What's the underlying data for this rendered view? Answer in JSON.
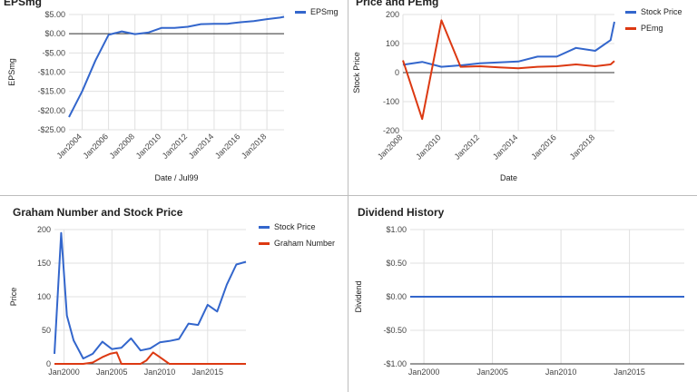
{
  "chart_data": [
    {
      "id": "eps",
      "type": "line",
      "title": "EPSmg",
      "xlabel": "Date / Jul99",
      "ylabel": "EPSmg",
      "x_axis": "date",
      "xlim": [
        2003.0,
        2019.3
      ],
      "ylim": [
        -25,
        5
      ],
      "x_tick_labels": [
        "Jan2004",
        "Jan2006",
        "Jan2008",
        "Jan2010",
        "Jan2012",
        "Jan2014",
        "Jan2016",
        "Jan2018"
      ],
      "x_ticks": [
        2004,
        2006,
        2008,
        2010,
        2012,
        2014,
        2016,
        2018
      ],
      "y_tick_labels": [
        "$5.00",
        "$0.00",
        "-$5.00",
        "-$10.00",
        "-$15.00",
        "-$20.00",
        "-$25.00"
      ],
      "y_ticks": [
        5,
        0,
        -5,
        -10,
        -15,
        -20,
        -25
      ],
      "zero_line": 0,
      "grid": true,
      "legend_position": "top-right",
      "series": [
        {
          "name": "EPSmg",
          "color": "#3366cc",
          "x": [
            2003.0,
            2004.0,
            2005.0,
            2006.0,
            2007.0,
            2008.0,
            2009.0,
            2010.0,
            2011.0,
            2012.0,
            2013.0,
            2014.0,
            2015.0,
            2016.0,
            2017.0,
            2018.0,
            2019.0,
            2019.3
          ],
          "y": [
            -21.7,
            -15.0,
            -7.0,
            -0.3,
            0.6,
            -0.1,
            0.3,
            1.5,
            1.5,
            1.8,
            2.5,
            2.6,
            2.6,
            3.0,
            3.3,
            3.8,
            4.2,
            4.4
          ]
        }
      ]
    },
    {
      "id": "price_pe",
      "type": "line",
      "title": "Price and PEmg",
      "xlabel": "Date",
      "ylabel": "Stock Price",
      "x_axis": "date",
      "xlim": [
        2008.0,
        2019.0
      ],
      "ylim": [
        -200,
        200
      ],
      "x_tick_labels": [
        "Jan2008",
        "Jan2010",
        "Jan2012",
        "Jan2014",
        "Jan2016",
        "Jan2018"
      ],
      "x_ticks": [
        2008,
        2010,
        2012,
        2014,
        2016,
        2018
      ],
      "y_tick_labels": [
        "200",
        "100",
        "0",
        "-100",
        "-200"
      ],
      "y_ticks": [
        200,
        100,
        0,
        -100,
        -200
      ],
      "zero_line": 0,
      "grid": true,
      "legend_position": "top-right",
      "series": [
        {
          "name": "Stock Price",
          "color": "#3366cc",
          "x": [
            2008.0,
            2009.0,
            2010.0,
            2011.0,
            2012.0,
            2013.0,
            2014.0,
            2015.0,
            2016.0,
            2017.0,
            2018.0,
            2018.8,
            2019.0
          ],
          "y": [
            27,
            37,
            20,
            25,
            32,
            35,
            38,
            55,
            55,
            85,
            75,
            112,
            175
          ]
        },
        {
          "name": "PEmg",
          "color": "#dc3912",
          "x": [
            2008.0,
            2009.0,
            2010.0,
            2011.0,
            2012.0,
            2013.0,
            2014.0,
            2015.0,
            2016.0,
            2017.0,
            2018.0,
            2018.8,
            2019.0
          ],
          "y": [
            42,
            -160,
            180,
            20,
            22,
            18,
            15,
            20,
            22,
            28,
            22,
            28,
            40
          ]
        }
      ]
    },
    {
      "id": "graham",
      "type": "line",
      "title": "Graham Number and Stock Price",
      "xlabel": "",
      "ylabel": "Price",
      "x_axis": "date",
      "xlim": [
        1999.0,
        2019.0
      ],
      "ylim": [
        0,
        200
      ],
      "x_tick_labels": [
        "Jan2000",
        "Jan2005",
        "Jan2010",
        "Jan2015"
      ],
      "x_ticks": [
        2000,
        2005,
        2010,
        2015
      ],
      "y_tick_labels": [
        "200",
        "150",
        "100",
        "50",
        "0"
      ],
      "y_ticks": [
        200,
        150,
        100,
        50,
        0
      ],
      "grid": true,
      "legend_position": "top-right",
      "series": [
        {
          "name": "Stock Price",
          "color": "#3366cc",
          "x": [
            1999.0,
            1999.7,
            2000.3,
            2001.0,
            2002.0,
            2003.0,
            2004.0,
            2005.0,
            2006.0,
            2007.0,
            2008.0,
            2009.0,
            2010.0,
            2011.0,
            2012.0,
            2013.0,
            2014.0,
            2015.0,
            2016.0,
            2017.0,
            2018.0,
            2019.0
          ],
          "y": [
            15,
            195,
            72,
            35,
            8,
            15,
            33,
            22,
            24,
            38,
            20,
            23,
            32,
            34,
            37,
            60,
            58,
            88,
            78,
            118,
            148,
            152
          ]
        },
        {
          "name": "Graham Number",
          "color": "#dc3912",
          "x": [
            1999.0,
            1999.7,
            2000.3,
            2001.0,
            2002.0,
            2003.0,
            2004.0,
            2004.8,
            2005.5,
            2006.0,
            2007.0,
            2008.0,
            2008.6,
            2009.3,
            2010.0,
            2011.0,
            2012.0,
            2013.0,
            2014.0,
            2015.0,
            2016.0,
            2017.0,
            2018.0,
            2019.0
          ],
          "y": [
            0,
            0,
            0,
            0,
            0,
            2,
            10,
            15,
            17,
            0,
            0,
            0,
            5,
            17,
            10,
            0,
            0,
            0,
            0,
            0,
            0,
            0,
            0,
            0
          ]
        }
      ]
    },
    {
      "id": "dividend",
      "type": "line",
      "title": "Dividend History",
      "xlabel": "",
      "ylabel": "Dividend",
      "x_axis": "date",
      "xlim": [
        1999.0,
        2019.0
      ],
      "ylim": [
        -1,
        1
      ],
      "x_tick_labels": [
        "Jan2000",
        "Jan2005",
        "Jan2010",
        "Jan2015"
      ],
      "x_ticks": [
        2000,
        2005,
        2010,
        2015
      ],
      "y_tick_labels": [
        "$1.00",
        "$0.50",
        "$0.00",
        "-$0.50",
        "-$1.00"
      ],
      "y_ticks": [
        1,
        0.5,
        0,
        -0.5,
        -1
      ],
      "grid": true,
      "legend_position": "none",
      "series": [
        {
          "name": "",
          "color": "#3366cc",
          "x": [
            1999.0,
            2019.0
          ],
          "y": [
            0,
            0
          ]
        }
      ]
    }
  ]
}
